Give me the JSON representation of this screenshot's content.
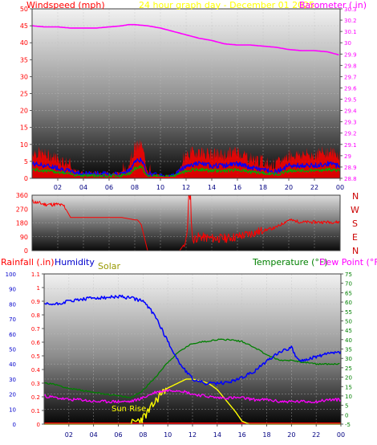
{
  "header": {
    "windspeed_label": "Windspeed (mph)",
    "title": "24 hour graph day - December 01 2025",
    "barometer_label": "Barometer (.in)"
  },
  "mid": {
    "compass_labels": [
      "N",
      "W",
      "S",
      "E",
      "N"
    ]
  },
  "bottom_header": {
    "rainfall_label": "Rainfall (.in)",
    "humidity_label": "Humidity",
    "solar_label": "Solar",
    "temperature_label": "Temperature (°F)",
    "dewpoint_label": "Dew Point (°F)",
    "sunrise_label": "Sun Rise"
  },
  "colors": {
    "windspeed": "#ff0000",
    "barometer": "#ff00ff",
    "title": "#ffff00",
    "humidity": "#0000ff",
    "solar": "#ffff00",
    "temperature": "#008000",
    "dewpoint": "#ff00ff",
    "rainfall": "#ff0000"
  },
  "chart_data": [
    {
      "type": "line",
      "name": "wind-barometer",
      "x_tick_labels": [
        "02",
        "04",
        "06",
        "08",
        "10",
        "12",
        "14",
        "16",
        "18",
        "20",
        "22",
        "00"
      ],
      "left_axis": {
        "ylim": [
          0,
          50
        ],
        "ticks": [
          "0",
          "5",
          "10",
          "15",
          "20",
          "25",
          "30",
          "35",
          "40",
          "45",
          "50"
        ]
      },
      "right_axis": {
        "ylim": [
          28.8,
          30.3
        ],
        "ticks": [
          "28.8",
          "28.9",
          "29",
          "29.1",
          "29.2",
          "29.3",
          "29.4",
          "29.5",
          "29.6",
          "29.7",
          "29.8",
          "29.9",
          "30",
          "30.1",
          "30.2",
          "30.3"
        ]
      },
      "series": [
        {
          "name": "Barometer (.in)",
          "axis": "right",
          "x": [
            0,
            1,
            2,
            3,
            4,
            5,
            6,
            7,
            7.5,
            8,
            9,
            10,
            11,
            12,
            13,
            14,
            15,
            16,
            17,
            18,
            19,
            20,
            21,
            22,
            23,
            24
          ],
          "values": [
            30.15,
            30.14,
            30.14,
            30.13,
            30.13,
            30.13,
            30.14,
            30.15,
            30.16,
            30.16,
            30.15,
            30.13,
            30.1,
            30.07,
            30.04,
            30.02,
            29.99,
            29.98,
            29.98,
            29.97,
            29.96,
            29.94,
            29.93,
            29.93,
            29.92,
            29.89
          ]
        },
        {
          "name": "Windspeed (mph)",
          "axis": "left",
          "x": [
            0,
            1,
            2,
            3,
            4,
            5,
            6,
            7,
            7.5,
            8,
            8.5,
            9,
            10,
            11,
            12,
            13,
            14,
            15,
            16,
            17,
            18,
            19,
            20,
            21,
            22,
            23,
            24
          ],
          "values": [
            6,
            5,
            4,
            2,
            1,
            1,
            1,
            1,
            2,
            7,
            8,
            1,
            0,
            0,
            5,
            6,
            5,
            5,
            6,
            4,
            3,
            2,
            5,
            5,
            5,
            6,
            5
          ]
        }
      ]
    },
    {
      "type": "line",
      "name": "wind-direction",
      "x_tick_labels": [
        "02",
        "04",
        "06",
        "08",
        "10",
        "12",
        "14",
        "16",
        "18",
        "20",
        "22",
        "00"
      ],
      "ylim": [
        0,
        360
      ],
      "ticks": [
        "0",
        "90",
        "180",
        "270",
        "360"
      ],
      "series": [
        {
          "name": "Wind direction",
          "x": [
            0,
            1,
            2,
            2.5,
            3,
            4,
            5,
            6,
            7,
            8,
            8.2,
            8.5,
            9,
            10,
            11,
            11.5,
            12,
            12.3,
            12.5,
            13,
            14,
            15,
            16,
            17,
            18,
            19,
            19.5,
            20,
            21,
            22,
            23,
            24
          ],
          "values": [
            320,
            300,
            300,
            290,
            215,
            215,
            215,
            215,
            215,
            200,
            200,
            170,
            0,
            0,
            0,
            0,
            60,
            360,
            70,
            90,
            80,
            80,
            90,
            110,
            130,
            150,
            175,
            200,
            185,
            185,
            185,
            185
          ]
        }
      ]
    },
    {
      "type": "line",
      "name": "rain-humidity-solar-temperature",
      "x_tick_labels": [
        "02",
        "04",
        "06",
        "08",
        "10",
        "12",
        "14",
        "16",
        "18",
        "20",
        "22",
        "00"
      ],
      "left_axis_humidity": {
        "ylim": [
          0,
          100
        ],
        "ticks": [
          "0",
          "10",
          "20",
          "30",
          "40",
          "50",
          "60",
          "70",
          "80",
          "90",
          "100"
        ]
      },
      "left_axis_rainfall": {
        "ylim": [
          0,
          1.1
        ],
        "ticks": [
          "0",
          "0.1",
          "0.2",
          "0.3",
          "0.4",
          "0.5",
          "0.6",
          "0.7",
          "0.8",
          "0.9",
          "1",
          "1.1"
        ]
      },
      "right_axis_temperature": {
        "ylim": [
          -5,
          75
        ],
        "ticks": [
          "-5",
          "0",
          "5",
          "10",
          "15",
          "20",
          "25",
          "30",
          "35",
          "40",
          "45",
          "50",
          "55",
          "60",
          "65",
          "70",
          "75"
        ]
      },
      "series": [
        {
          "name": "Humidity",
          "axis": "humidity",
          "x": [
            0,
            1,
            2,
            3,
            4,
            5,
            6,
            7,
            8,
            9,
            10,
            11,
            12,
            13,
            14,
            15,
            16,
            17,
            18,
            19,
            20,
            20.5,
            21,
            22,
            23,
            24
          ],
          "values": [
            80,
            80,
            82,
            83,
            84,
            84,
            85,
            84,
            82,
            72,
            55,
            40,
            30,
            27,
            27,
            28,
            31,
            35,
            42,
            48,
            51,
            43,
            42,
            45,
            47,
            48
          ]
        },
        {
          "name": "Temperature (°F)",
          "axis": "temperature",
          "x": [
            0,
            1,
            2,
            3,
            4,
            5,
            6,
            7,
            8,
            9,
            10,
            11,
            12,
            13,
            14,
            15,
            16,
            17,
            18,
            19,
            20,
            21,
            22,
            23,
            24
          ],
          "values": [
            17,
            16,
            14,
            13,
            12,
            11,
            10,
            9,
            13,
            20,
            28,
            34,
            38,
            39,
            40,
            40,
            39,
            36,
            32,
            29,
            29,
            28,
            27,
            27,
            27
          ]
        },
        {
          "name": "Dew Point (°F)",
          "axis": "temperature",
          "x": [
            0,
            1,
            2,
            3,
            4,
            5,
            6,
            7,
            8,
            9,
            10,
            11,
            12,
            13,
            14,
            15,
            16,
            17,
            18,
            19,
            20,
            21,
            22,
            23,
            24
          ],
          "values": [
            10,
            9,
            8,
            8,
            7,
            7,
            7,
            7,
            9,
            12,
            13,
            13,
            11,
            10,
            9,
            9,
            9,
            8,
            8,
            7,
            7,
            7,
            7,
            8,
            8
          ]
        },
        {
          "name": "Solar",
          "axis": "humidity",
          "x": [
            0,
            6.5,
            7,
            7.5,
            8,
            8.5,
            9,
            9.5,
            10,
            10.5,
            11,
            11.5,
            12,
            12.5,
            13,
            13.5,
            14,
            14.5,
            15,
            15.5,
            16,
            16.3,
            16.6,
            17,
            24
          ],
          "values": [
            0,
            0,
            0,
            2,
            4,
            9,
            15,
            21,
            24,
            26,
            28,
            30,
            30,
            29,
            28,
            26,
            23,
            18,
            13,
            8,
            2,
            1,
            0,
            0,
            0
          ]
        },
        {
          "name": "Rainfall (.in)",
          "axis": "rainfall",
          "x": [
            0,
            24
          ],
          "values": [
            0,
            0
          ]
        }
      ]
    }
  ]
}
